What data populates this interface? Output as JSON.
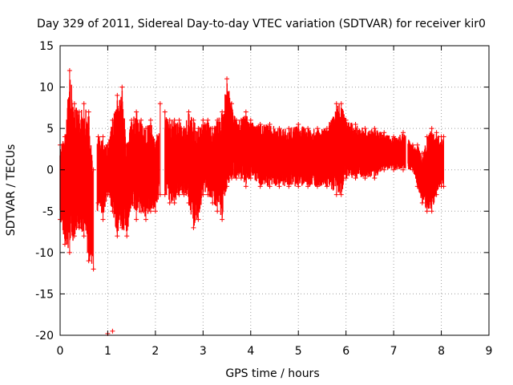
{
  "chart_data": {
    "type": "line",
    "title": "Day 329 of 2011, Sidereal Day-to-day VTEC variation (SDTVAR) for receiver kir0",
    "xlabel": "GPS time / hours",
    "ylabel": "SDTVAR / TECUs",
    "xlim": [
      0,
      9
    ],
    "ylim": [
      -20,
      15
    ],
    "xticks": [
      0,
      1,
      2,
      3,
      4,
      5,
      6,
      7,
      8,
      9
    ],
    "yticks": [
      -20,
      -15,
      -10,
      -5,
      0,
      5,
      10,
      15
    ],
    "grid": true,
    "series": [
      {
        "name": "SDTVAR",
        "color": "#ff0000",
        "style": "errorbars",
        "x": [
          0.0,
          0.1,
          0.2,
          0.3,
          0.4,
          0.5,
          0.6,
          0.7,
          0.8,
          0.9,
          1.0,
          1.1,
          1.2,
          1.3,
          1.4,
          1.5,
          1.6,
          1.7,
          1.8,
          1.9,
          2.0,
          2.1,
          2.2,
          2.3,
          2.4,
          2.5,
          2.6,
          2.7,
          2.8,
          2.9,
          3.0,
          3.1,
          3.2,
          3.3,
          3.4,
          3.5,
          3.6,
          3.7,
          3.8,
          3.9,
          4.0,
          4.2,
          4.4,
          4.6,
          4.8,
          5.0,
          5.2,
          5.4,
          5.6,
          5.8,
          5.9,
          6.0,
          6.2,
          6.4,
          6.6,
          6.8,
          7.0,
          7.2,
          7.4,
          7.5,
          7.6,
          7.7,
          7.8,
          7.9,
          8.0,
          8.05
        ],
        "upper": [
          3,
          4,
          12,
          8,
          7,
          8,
          7,
          0,
          4,
          4,
          3,
          6,
          9,
          10,
          3,
          6,
          7,
          6,
          5,
          6,
          3,
          8,
          7,
          6,
          6,
          6,
          5,
          7,
          6,
          5,
          6,
          6,
          5,
          6,
          7,
          11,
          8,
          6,
          6,
          7,
          6,
          5.5,
          5.5,
          5,
          5,
          5.5,
          5,
          5,
          5,
          8,
          8,
          6,
          5.5,
          5,
          5,
          4.5,
          4,
          4.5,
          3,
          3,
          2,
          4,
          5,
          4.5,
          4,
          4
        ],
        "lower": [
          -6,
          -9,
          -10,
          -8,
          -7,
          -8,
          -11,
          -12,
          -4,
          -6,
          -3,
          -5,
          -8,
          -7,
          -8,
          -4,
          -6,
          -5,
          -6,
          -5,
          -5,
          -3,
          -3,
          -4,
          -4,
          -3,
          -3,
          -4,
          -7,
          -6,
          -3,
          -3,
          -4,
          -5,
          -6,
          -2,
          -1,
          -1,
          -1,
          -2,
          -1,
          -2,
          -2,
          -2,
          -2,
          -2,
          -2,
          -2,
          -2,
          -3,
          -3,
          -1,
          -1,
          -1,
          -1,
          0,
          0,
          0,
          0,
          -2,
          -4,
          -5,
          -5,
          -3,
          -2,
          -2
        ]
      }
    ],
    "outliers": [
      {
        "x": 1.0,
        "y": -19.8
      },
      {
        "x": 1.1,
        "y": -19.5
      }
    ]
  }
}
